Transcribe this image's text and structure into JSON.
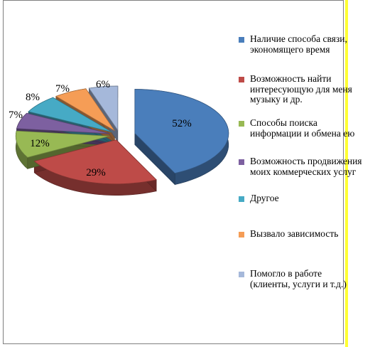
{
  "chart_data": {
    "type": "pie",
    "title": "",
    "slices": [
      {
        "label": "Наличие способа связи, экономящего время",
        "value": 52,
        "data_label": "52%",
        "color": "#4a7ebb"
      },
      {
        "label": "Возможность найти интересующую для меня музыку и др.",
        "value": 29,
        "data_label": "29%",
        "color": "#be4b48"
      },
      {
        "label": "Способы поиска информации и обмена ею",
        "value": 12,
        "data_label": "12%",
        "color": "#98b954"
      },
      {
        "label": "Возможность продвижения моих коммерческих услуг",
        "value": 7,
        "data_label": "7%",
        "color": "#7d60a0"
      },
      {
        "label": "Другое",
        "value": 8,
        "data_label": "8%",
        "color": "#46aac5"
      },
      {
        "label": "Вызвало зависимость",
        "value": 7,
        "data_label": "7%",
        "color": "#f59d56"
      },
      {
        "label": "Помогло в работе (клиенты, услуги и т.д.)",
        "value": 6,
        "data_label": "6%",
        "color": "#a5b8da"
      }
    ],
    "legend_position": "right",
    "style": "3d-exploded"
  }
}
